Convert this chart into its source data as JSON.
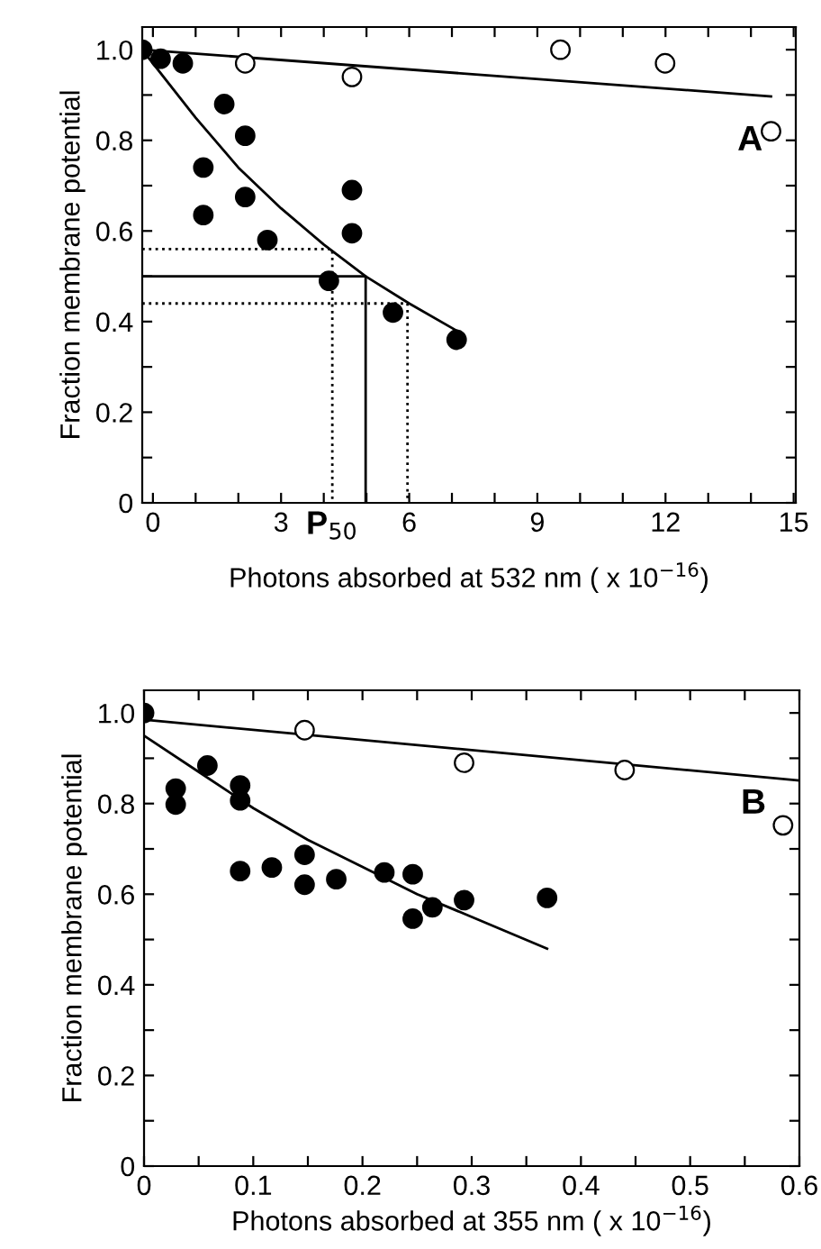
{
  "chart_data": [
    {
      "type": "scatter",
      "xlabel": "Photons absorbed at 532 nm ( x 10$^{−16}$)",
      "ylabel": "Fraction membrane potential",
      "xlim": [
        -0.25,
        15.05
      ],
      "ylim": [
        0,
        1.05
      ],
      "xticks": [
        0,
        {
          "value": 1,
          "label": null
        },
        {
          "value": 2,
          "label": null
        },
        3,
        {
          "value": 4,
          "label": null
        },
        {
          "value": 5,
          "label": null
        },
        6,
        {
          "value": 7,
          "label": null
        },
        {
          "value": 8,
          "label": null
        },
        9,
        {
          "value": 10,
          "label": null
        },
        {
          "value": 11,
          "label": null
        },
        12,
        {
          "value": 13,
          "label": null
        },
        {
          "value": 14,
          "label": null
        },
        15
      ],
      "yticks": [
        0,
        {
          "value": 0.1,
          "label": null
        },
        0.2,
        {
          "value": 0.3,
          "label": null
        },
        0.4,
        {
          "value": 0.5,
          "label": null
        },
        0.6,
        {
          "value": 0.7,
          "label": null
        },
        0.8,
        {
          "value": 0.9,
          "label": null
        },
        {
          "value": 1.0,
          "label": "1.0"
        }
      ],
      "annotations": [
        "A",
        {
          "text": "P$_{50}$",
          "x": 4.98,
          "y": 0
        }
      ],
      "series": [
        {
          "marker": "circle",
          "color": "#000000",
          "x": [
            -0.25,
            0.18,
            0.7,
            1.67,
            2.16,
            1.18,
            1.18,
            2.16,
            2.68,
            4.66,
            4.66,
            4.12,
            5.62,
            7.11
          ],
          "values": [
            1.0,
            0.98,
            0.97,
            0.88,
            0.81,
            0.74,
            0.635,
            0.675,
            0.58,
            0.69,
            0.595,
            0.49,
            0.42,
            0.36
          ]
        },
        {
          "marker": "circle",
          "color": "#ffffff",
          "x": [
            2.16,
            4.66,
            9.54,
            11.99,
            14.47
          ],
          "values": [
            0.97,
            0.94,
            1.0,
            0.97,
            0.82
          ]
        },
        {
          "type": "line",
          "color": "#000000",
          "line_style": "solid",
          "x": [
            -0.25,
            4.98,
            4.98
          ],
          "values": [
            0.5,
            0.5,
            0
          ]
        },
        {
          "type": "line",
          "color": "#000000",
          "line_style": "solid",
          "x": [
            -0.25,
            14.47
          ],
          "values": [
            1.0,
            0.897
          ]
        },
        {
          "type": "line",
          "color": "#000000",
          "line_style": "solid",
          "x": [
            -0.25,
            1,
            2,
            3,
            4,
            4.98,
            6,
            7.11
          ],
          "values": [
            1.0,
            0.85,
            0.74,
            0.65,
            0.57,
            0.5,
            0.44,
            0.38
          ]
        },
        {
          "type": "line",
          "color": "#000000",
          "line_style": "dotted",
          "x": [
            -0.25,
            4.2,
            4.2
          ],
          "values": [
            0.56,
            0.56,
            0
          ]
        },
        {
          "type": "line",
          "color": "#000000",
          "line_style": "dotted",
          "x": [
            -0.25,
            5.96,
            5.96
          ],
          "values": [
            0.44,
            0.44,
            0
          ]
        }
      ]
    },
    {
      "type": "scatter",
      "xlabel": "Photons absorbed at 355 nm ( x 10$^{−16}$)",
      "ylabel": "Fraction membrane potential",
      "xlim": [
        0,
        0.6
      ],
      "ylim": [
        0,
        1.05
      ],
      "xticks": [
        0,
        {
          "value": 0.05,
          "label": null
        },
        0.1,
        {
          "value": 0.15,
          "label": null
        },
        0.2,
        {
          "value": 0.25,
          "label": null
        },
        0.3,
        {
          "value": 0.35,
          "label": null
        },
        0.4,
        {
          "value": 0.45,
          "label": null
        },
        0.5,
        {
          "value": 0.55,
          "label": null
        },
        0.6
      ],
      "yticks": [
        0,
        {
          "value": 0.1,
          "label": null
        },
        0.2,
        {
          "value": 0.3,
          "label": null
        },
        0.4,
        {
          "value": 0.5,
          "label": null
        },
        0.6,
        {
          "value": 0.7,
          "label": null
        },
        0.8,
        {
          "value": 0.9,
          "label": null
        },
        {
          "value": 1.0,
          "label": "1.0"
        }
      ],
      "annotations": [
        "B"
      ],
      "series": [
        {
          "marker": "circle",
          "color": "#ffffff",
          "x": [
            0.147,
            0.293,
            0.44,
            0.585
          ],
          "values": [
            0.962,
            0.89,
            0.874,
            0.752
          ]
        },
        {
          "marker": "circle",
          "color": "#000000",
          "x": [
            0,
            0.029,
            0.029,
            0.058,
            0.088,
            0.088,
            0.088,
            0.117,
            0.147,
            0.147,
            0.176,
            0.22,
            0.246,
            0.246,
            0.264,
            0.293,
            0.369
          ],
          "values": [
            1.0,
            0.833,
            0.798,
            0.884,
            0.84,
            0.807,
            0.651,
            0.659,
            0.687,
            0.621,
            0.633,
            0.648,
            0.644,
            0.546,
            0.571,
            0.587,
            0.592
          ]
        },
        {
          "type": "line",
          "color": "#000000",
          "line_style": "solid",
          "x": [
            0,
            0.6
          ],
          "values": [
            0.985,
            0.851
          ]
        },
        {
          "type": "line",
          "color": "#000000",
          "line_style": "solid",
          "x": [
            0,
            0.05,
            0.1,
            0.15,
            0.2,
            0.25,
            0.3,
            0.369
          ],
          "values": [
            0.95,
            0.87,
            0.79,
            0.72,
            0.66,
            0.6,
            0.55,
            0.48
          ]
        }
      ]
    }
  ]
}
